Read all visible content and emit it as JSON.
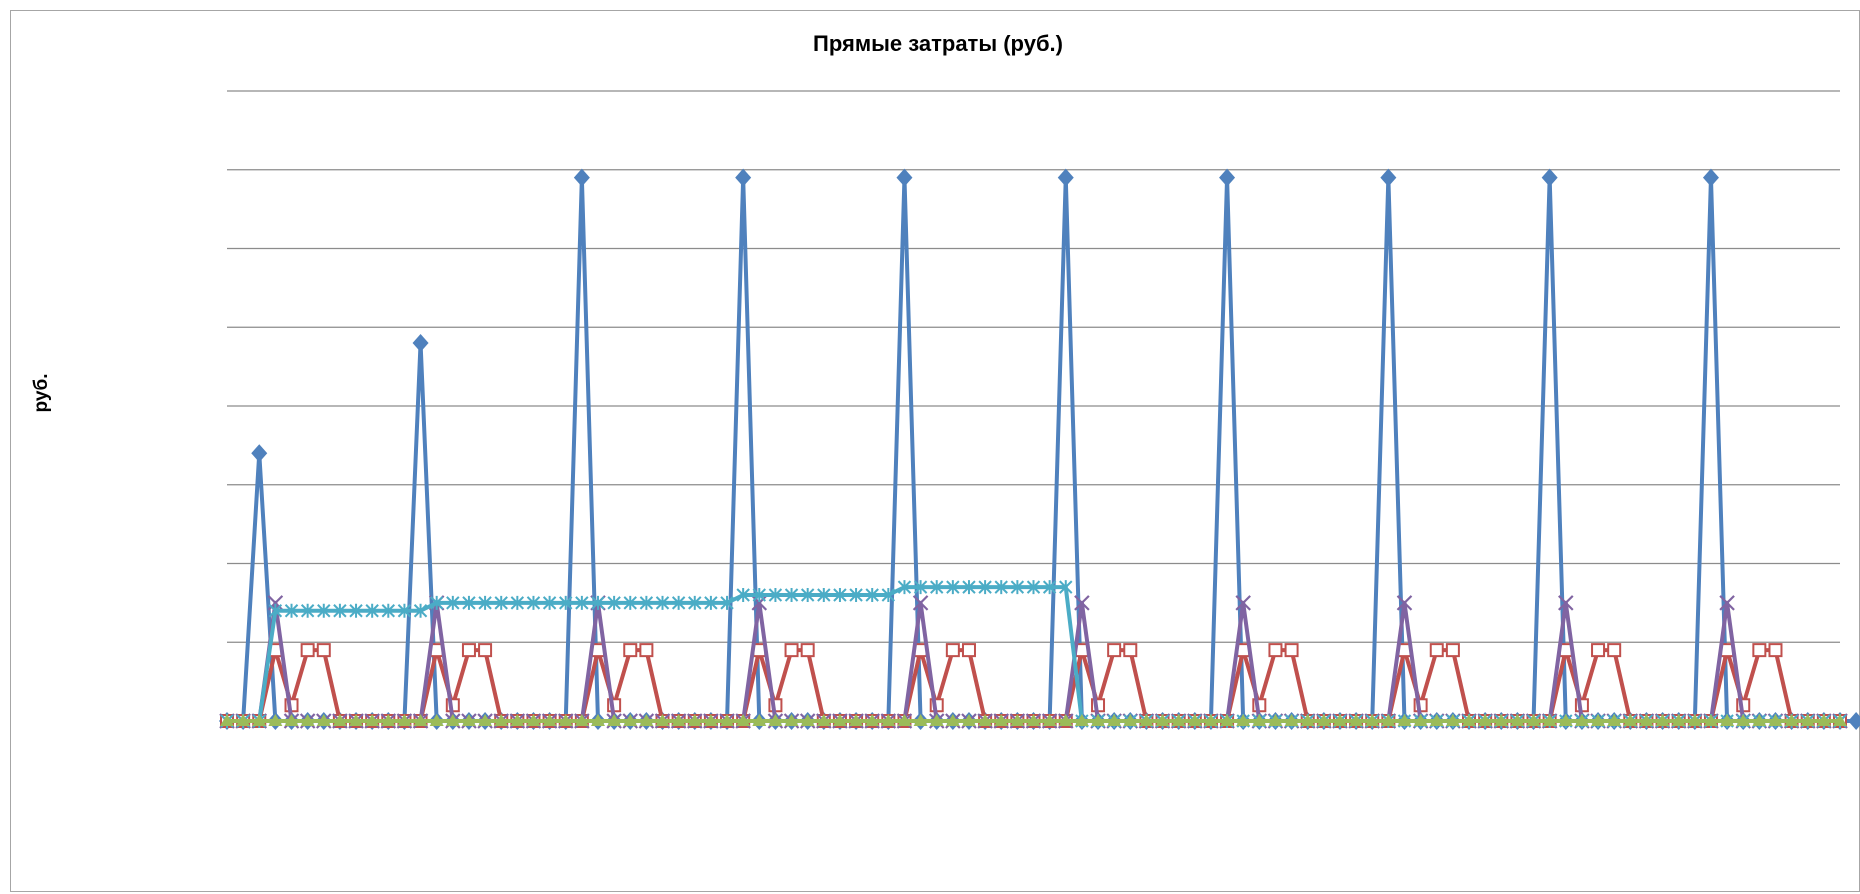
{
  "chart_data": {
    "type": "line",
    "title": "Прямые затраты (руб.)",
    "xlabel": "",
    "ylabel": "руб.",
    "ylim": [
      0,
      8
    ],
    "grid": true,
    "legend": "none",
    "x_count": 101,
    "series": [
      {
        "color": "#4f81bd",
        "marker": "diamond",
        "values": [
          0,
          0,
          3.4,
          0,
          0,
          0,
          0,
          0,
          0,
          0,
          0,
          0,
          4.8,
          0,
          0,
          0,
          0,
          0,
          0,
          0,
          0,
          0,
          6.9,
          0,
          0,
          0,
          0,
          0,
          0,
          0,
          0,
          0,
          6.9,
          0,
          0,
          0,
          0,
          0,
          0,
          0,
          0,
          0,
          6.9,
          0,
          0,
          0,
          0,
          0,
          0,
          0,
          0,
          0,
          6.9,
          0,
          0,
          0,
          0,
          0,
          0,
          0,
          0,
          0,
          6.9,
          0,
          0,
          0,
          0,
          0,
          0,
          0,
          0,
          0,
          6.9,
          0,
          0,
          0,
          0,
          0,
          0,
          0,
          0,
          0,
          6.9,
          0,
          0,
          0,
          0,
          0,
          0,
          0,
          0,
          0,
          6.9,
          0,
          0,
          0,
          0,
          0,
          0,
          0,
          0,
          0,
          0
        ]
      },
      {
        "color": "#c0504d",
        "marker": "square",
        "values": [
          0,
          0,
          0,
          0.9,
          0.2,
          0.9,
          0.9,
          0,
          0,
          0,
          0,
          0,
          0,
          0.9,
          0.2,
          0.9,
          0.9,
          0,
          0,
          0,
          0,
          0,
          0,
          0.9,
          0.2,
          0.9,
          0.9,
          0,
          0,
          0,
          0,
          0,
          0,
          0.9,
          0.2,
          0.9,
          0.9,
          0,
          0,
          0,
          0,
          0,
          0,
          0.9,
          0.2,
          0.9,
          0.9,
          0,
          0,
          0,
          0,
          0,
          0,
          0.9,
          0.2,
          0.9,
          0.9,
          0,
          0,
          0,
          0,
          0,
          0,
          0.9,
          0.2,
          0.9,
          0.9,
          0,
          0,
          0,
          0,
          0,
          0,
          0.9,
          0.2,
          0.9,
          0.9,
          0,
          0,
          0,
          0,
          0,
          0,
          0.9,
          0.2,
          0.9,
          0.9,
          0,
          0,
          0,
          0,
          0,
          0,
          0.9,
          0.2,
          0.9,
          0.9,
          0,
          0,
          0,
          0
        ]
      },
      {
        "color": "#8064a2",
        "marker": "x",
        "values": [
          0,
          0,
          0,
          1.5,
          0,
          0,
          0,
          0,
          0,
          0,
          0,
          0,
          0,
          1.5,
          0,
          0,
          0,
          0,
          0,
          0,
          0,
          0,
          0,
          1.5,
          0,
          0,
          0,
          0,
          0,
          0,
          0,
          0,
          0,
          1.5,
          0,
          0,
          0,
          0,
          0,
          0,
          0,
          0,
          0,
          1.5,
          0,
          0,
          0,
          0,
          0,
          0,
          0,
          0,
          0,
          1.5,
          0,
          0,
          0,
          0,
          0,
          0,
          0,
          0,
          0,
          1.5,
          0,
          0,
          0,
          0,
          0,
          0,
          0,
          0,
          0,
          1.5,
          0,
          0,
          0,
          0,
          0,
          0,
          0,
          0,
          0,
          1.5,
          0,
          0,
          0,
          0,
          0,
          0,
          0,
          0,
          0,
          1.5,
          0,
          0,
          0,
          0,
          0,
          0,
          0
        ]
      },
      {
        "color": "#4bacc6",
        "marker": "star",
        "values": [
          0,
          0,
          0,
          1.4,
          1.4,
          1.4,
          1.4,
          1.4,
          1.4,
          1.4,
          1.4,
          1.4,
          1.4,
          1.5,
          1.5,
          1.5,
          1.5,
          1.5,
          1.5,
          1.5,
          1.5,
          1.5,
          1.5,
          1.5,
          1.5,
          1.5,
          1.5,
          1.5,
          1.5,
          1.5,
          1.5,
          1.5,
          1.6,
          1.6,
          1.6,
          1.6,
          1.6,
          1.6,
          1.6,
          1.6,
          1.6,
          1.6,
          1.7,
          1.7,
          1.7,
          1.7,
          1.7,
          1.7,
          1.7,
          1.7,
          1.7,
          1.7,
          1.7,
          0,
          0,
          0,
          0,
          0,
          0,
          0,
          0,
          0,
          0,
          0,
          0,
          0,
          0,
          0,
          0,
          0,
          0,
          0,
          0,
          0,
          0,
          0,
          0,
          0,
          0,
          0,
          0,
          0,
          0,
          0,
          0,
          0,
          0,
          0,
          0,
          0,
          0,
          0,
          0,
          0,
          0,
          0,
          0,
          0,
          0,
          0,
          0
        ]
      },
      {
        "color": "#9bbb59",
        "marker": "triangle",
        "values": [
          0,
          0,
          0,
          0,
          0,
          0,
          0,
          0,
          0,
          0,
          0,
          0,
          0,
          0,
          0,
          0,
          0,
          0,
          0,
          0,
          0,
          0,
          0,
          0,
          0,
          0,
          0,
          0,
          0,
          0,
          0,
          0,
          0,
          0,
          0,
          0,
          0,
          0,
          0,
          0,
          0,
          0,
          0,
          0,
          0,
          0,
          0,
          0,
          0,
          0,
          0,
          0,
          0,
          0,
          0,
          0,
          0,
          0,
          0,
          0,
          0,
          0,
          0,
          0,
          0,
          0,
          0,
          0,
          0,
          0,
          0,
          0,
          0,
          0,
          0,
          0,
          0,
          0,
          0,
          0,
          0,
          0,
          0,
          0,
          0,
          0,
          0,
          0,
          0,
          0,
          0,
          0,
          0,
          0,
          0,
          0,
          0,
          0,
          0,
          0,
          0
        ]
      }
    ]
  }
}
